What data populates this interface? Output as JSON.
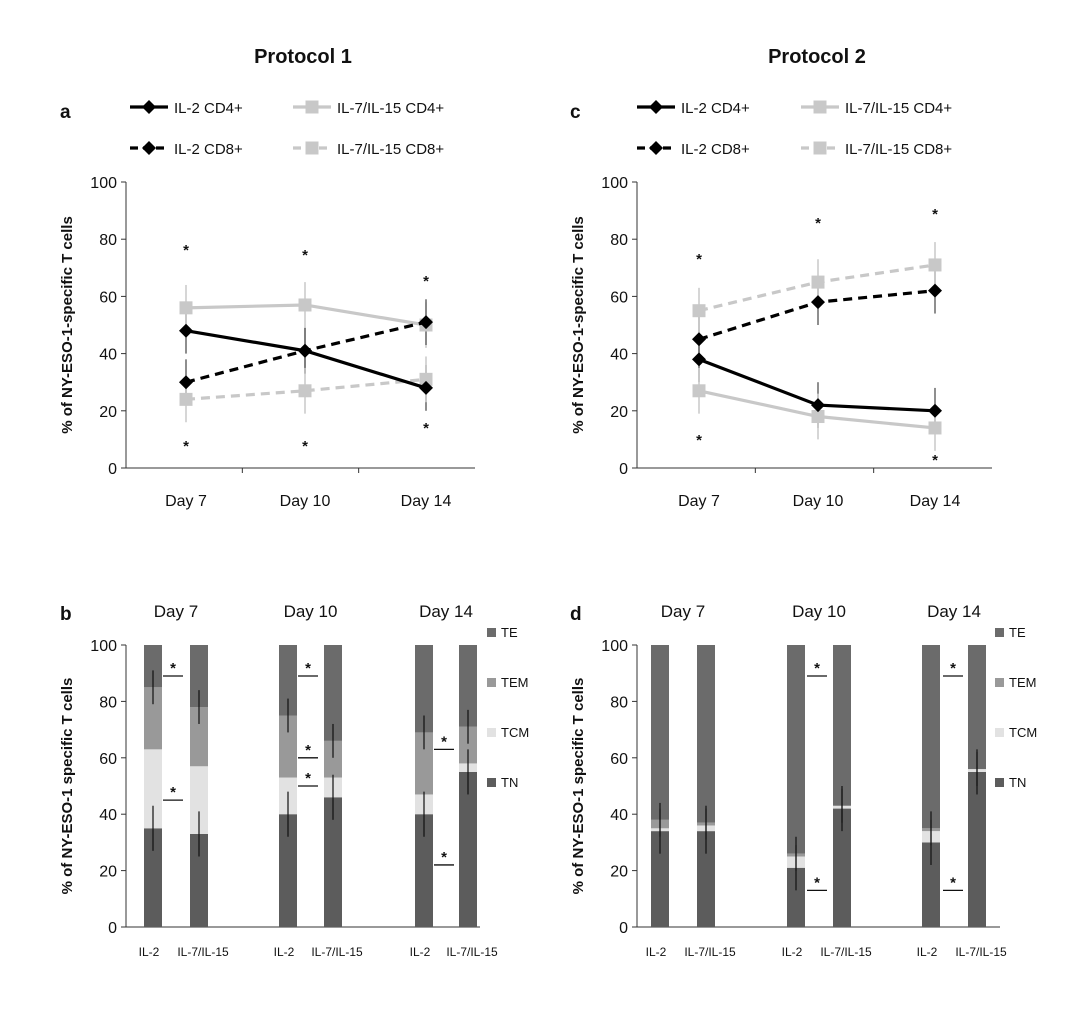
{
  "protocols": [
    "Protocol 1",
    "Protocol 2"
  ],
  "star": "*",
  "colors": {
    "il2": "#000000",
    "il7": "#c8c8c8",
    "TE": "#6b6b6b",
    "TEM": "#999999",
    "TCM": "#e2e2e2",
    "TN": "#5c5c5c"
  },
  "chart_data": [
    {
      "panel": "a",
      "type": "line",
      "ylabel": "% of NY-ESO-1-specific T cells",
      "ylim": [
        0,
        100
      ],
      "yticks": [
        0,
        20,
        40,
        60,
        80,
        100
      ],
      "categories": [
        "Day 7",
        "Day 10",
        "Day 14"
      ],
      "series": [
        {
          "name": "IL-2 CD4+",
          "values": [
            48,
            41,
            28
          ],
          "color": "#000000",
          "dashed": false
        },
        {
          "name": "IL-7/IL-15 CD4+",
          "values": [
            56,
            57,
            50
          ],
          "color": "#c8c8c8",
          "dashed": false
        },
        {
          "name": "IL-2 CD8+",
          "values": [
            30,
            41,
            51
          ],
          "color": "#000000",
          "dashed": true
        },
        {
          "name": "IL-7/IL-15 CD8+",
          "values": [
            24,
            27,
            31
          ],
          "color": "#c8c8c8",
          "dashed": true
        }
      ],
      "stars_top": [
        true,
        true,
        true
      ],
      "stars_bottom": [
        true,
        true,
        true
      ]
    },
    {
      "panel": "c",
      "type": "line",
      "ylabel": "% of NY-ESO-1-specific T cells",
      "ylim": [
        0,
        100
      ],
      "yticks": [
        0,
        20,
        40,
        60,
        80,
        100
      ],
      "categories": [
        "Day 7",
        "Day 10",
        "Day 14"
      ],
      "series": [
        {
          "name": "IL-2 CD4+",
          "values": [
            38,
            22,
            20
          ],
          "color": "#000000",
          "dashed": false
        },
        {
          "name": "IL-7/IL-15 CD4+",
          "values": [
            27,
            18,
            14
          ],
          "color": "#c8c8c8",
          "dashed": false
        },
        {
          "name": "IL-2 CD8+",
          "values": [
            45,
            58,
            62
          ],
          "color": "#000000",
          "dashed": true
        },
        {
          "name": "IL-7/IL-15 CD8+",
          "values": [
            55,
            65,
            71
          ],
          "color": "#c8c8c8",
          "dashed": true
        }
      ],
      "stars_top": [
        true,
        true,
        true
      ],
      "stars_bottom": [
        true,
        false,
        true
      ]
    },
    {
      "panel": "b",
      "type": "bar",
      "stacked": true,
      "ylabel": "% of NY-ESO-1 specific T cells",
      "ylim": [
        0,
        100
      ],
      "yticks": [
        0,
        20,
        40,
        60,
        80,
        100
      ],
      "days": [
        "Day 7",
        "Day 10",
        "Day 14"
      ],
      "bar_labels": [
        "IL-2",
        "IL-7/IL-15"
      ],
      "segments": [
        "TN",
        "TCM",
        "TEM",
        "TE"
      ],
      "legend": [
        "TE",
        "TEM",
        "TCM",
        "TN"
      ],
      "values": [
        [
          [
            35,
            28,
            22,
            15
          ],
          [
            33,
            24,
            21,
            22
          ]
        ],
        [
          [
            40,
            13,
            22,
            25
          ],
          [
            46,
            7,
            13,
            34
          ]
        ],
        [
          [
            40,
            7,
            22,
            31
          ],
          [
            55,
            3,
            13,
            29
          ]
        ]
      ]
    },
    {
      "panel": "d",
      "type": "bar",
      "stacked": true,
      "ylabel": "% of NY-ESO-1 specific T cells",
      "ylim": [
        0,
        100
      ],
      "yticks": [
        0,
        20,
        40,
        60,
        80,
        100
      ],
      "days": [
        "Day 7",
        "Day 10",
        "Day 14"
      ],
      "bar_labels": [
        "IL-2",
        "IL-7/IL-15"
      ],
      "segments": [
        "TN",
        "TCM",
        "TEM",
        "TE"
      ],
      "legend": [
        "TE",
        "TEM",
        "TCM",
        "TN"
      ],
      "values": [
        [
          [
            34,
            1,
            3,
            62
          ],
          [
            34,
            2,
            1,
            63
          ]
        ],
        [
          [
            21,
            4,
            1,
            74
          ],
          [
            42,
            1,
            0,
            57
          ]
        ],
        [
          [
            30,
            4,
            1,
            65
          ],
          [
            55,
            1,
            0,
            44
          ]
        ]
      ]
    }
  ]
}
